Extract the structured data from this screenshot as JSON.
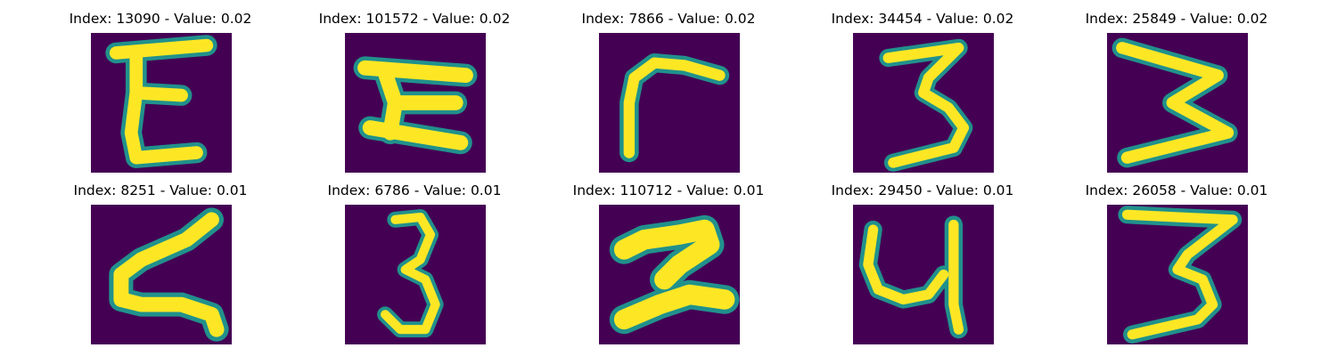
{
  "panels": [
    {
      "title": "Index: 13090 - Value: 0.02",
      "depicts": "handwritten-E"
    },
    {
      "title": "Index: 101572 - Value: 0.02",
      "depicts": "handwritten-sideways-H"
    },
    {
      "title": "Index: 7866 - Value: 0.02",
      "depicts": "handwritten-r"
    },
    {
      "title": "Index: 34454 - Value: 0.02",
      "depicts": "handwritten-3"
    },
    {
      "title": "Index: 25849 - Value: 0.02",
      "depicts": "handwritten-sideways-W"
    },
    {
      "title": "Index: 8251 - Value: 0.01",
      "depicts": "handwritten-sideways-N"
    },
    {
      "title": "Index: 6786 - Value: 0.01",
      "depicts": "handwritten-3"
    },
    {
      "title": "Index: 110712 - Value: 0.01",
      "depicts": "handwritten-z"
    },
    {
      "title": "Index: 29450 - Value: 0.01",
      "depicts": "handwritten-y"
    },
    {
      "title": "Index: 26058 - Value: 0.01",
      "depicts": "handwritten-3"
    }
  ],
  "colors": {
    "background": "#440154",
    "stroke": "#fde725",
    "edge": "#21918c",
    "mid": "#5ec962"
  }
}
